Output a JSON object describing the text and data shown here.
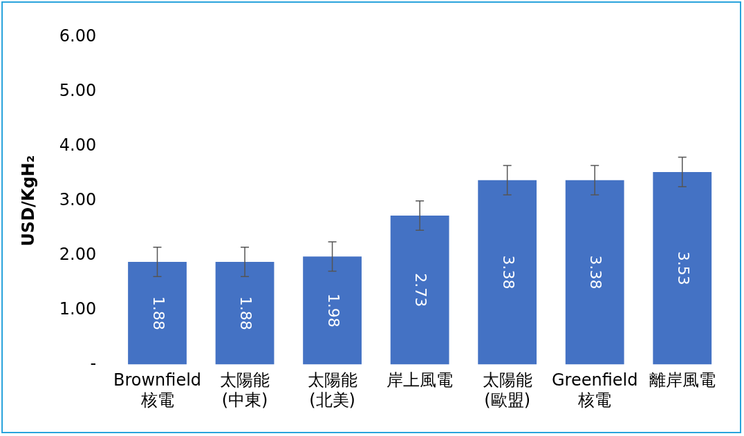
{
  "chart_data": {
    "type": "bar",
    "ylabel": "USD/KgH₂",
    "categories": [
      "Brownfield\n核電",
      "太陽能\n(中東)",
      "太陽能\n(北美)",
      "岸上風電",
      "太陽能\n(歐盟)",
      "Greenfield\n核電",
      "離岸風電"
    ],
    "values": [
      1.88,
      1.88,
      1.98,
      2.73,
      3.38,
      3.38,
      3.53
    ],
    "errors": [
      0.27,
      0.27,
      0.27,
      0.27,
      0.27,
      0.27,
      0.27
    ],
    "color": "#4472c4",
    "ylim": [
      0,
      6
    ],
    "yticks": [
      {
        "value": 0,
        "label": "-"
      },
      {
        "value": 1,
        "label": "1.00"
      },
      {
        "value": 2,
        "label": "2.00"
      },
      {
        "value": 3,
        "label": "3.00"
      },
      {
        "value": 4,
        "label": "4.00"
      },
      {
        "value": 5,
        "label": "5.00"
      },
      {
        "value": 6,
        "label": "6.00"
      }
    ],
    "grid": false,
    "legend": false,
    "data_labels": true
  }
}
